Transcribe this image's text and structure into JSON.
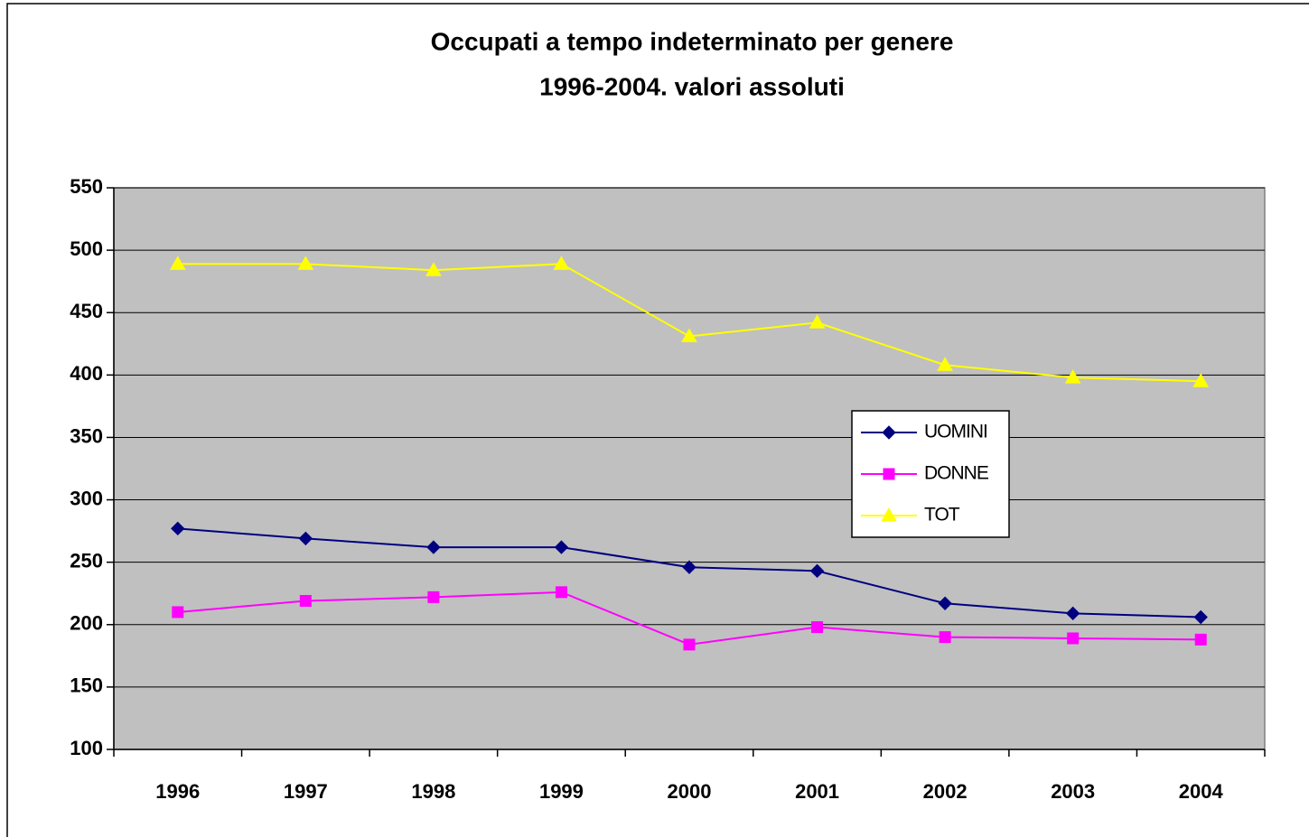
{
  "chart_data": {
    "type": "line",
    "title": "Occupati a tempo indeterminato per genere",
    "subtitle": "1996-2004. valori assoluti",
    "categories": [
      "1996",
      "1997",
      "1998",
      "1999",
      "2000",
      "2001",
      "2002",
      "2003",
      "2004"
    ],
    "series": [
      {
        "name": "UOMINI",
        "color": "#000080",
        "marker": "diamond",
        "values": [
          277,
          269,
          262,
          262,
          246,
          243,
          217,
          209,
          206
        ]
      },
      {
        "name": "DONNE",
        "color": "#ff00ff",
        "marker": "square",
        "values": [
          210,
          219,
          222,
          226,
          184,
          198,
          190,
          189,
          188
        ]
      },
      {
        "name": "TOT",
        "color": "#ffff00",
        "marker": "triangle",
        "values": [
          489,
          489,
          484,
          489,
          431,
          442,
          408,
          398,
          395
        ]
      }
    ],
    "ylim": [
      100,
      550
    ],
    "yticks": [
      100,
      150,
      200,
      250,
      300,
      350,
      400,
      450,
      500,
      550
    ],
    "grid": true,
    "legend": "right",
    "plot_background": "#c0c0c0"
  }
}
